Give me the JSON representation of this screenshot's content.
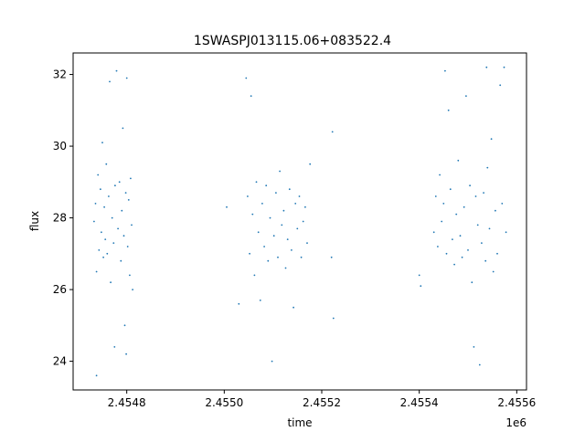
{
  "chart_data": {
    "type": "scatter",
    "title": "1SWASPJ013115.06+083522.4",
    "xlabel": "time",
    "ylabel": "flux",
    "x_offset_label": "1e6",
    "xlim": [
      2454690,
      2455620
    ],
    "ylim": [
      23.2,
      32.6
    ],
    "grid": false,
    "legend": "none",
    "point_color": "#1f77b4",
    "x_ticks": [
      {
        "value": 2454800,
        "label": "2.4548"
      },
      {
        "value": 2455000,
        "label": "2.4550"
      },
      {
        "value": 2455200,
        "label": "2.4552"
      },
      {
        "value": 2455400,
        "label": "2.4554"
      },
      {
        "value": 2455600,
        "label": "2.4556"
      }
    ],
    "y_ticks": [
      {
        "value": 24,
        "label": "24"
      },
      {
        "value": 26,
        "label": "26"
      },
      {
        "value": 28,
        "label": "28"
      },
      {
        "value": 30,
        "label": "30"
      },
      {
        "value": 32,
        "label": "32"
      }
    ],
    "series": [
      {
        "points": [
          [
            2454733,
            27.9
          ],
          [
            2454736,
            28.4
          ],
          [
            2454738,
            26.5
          ],
          [
            2454741,
            29.2
          ],
          [
            2454743,
            27.1
          ],
          [
            2454746,
            28.8
          ],
          [
            2454748,
            27.6
          ],
          [
            2454750,
            30.1
          ],
          [
            2454752,
            26.9
          ],
          [
            2454754,
            28.3
          ],
          [
            2454756,
            27.4
          ],
          [
            2454758,
            29.5
          ],
          [
            2454760,
            27.0
          ],
          [
            2454763,
            28.6
          ],
          [
            2454765,
            31.8
          ],
          [
            2454767,
            26.2
          ],
          [
            2454770,
            28.0
          ],
          [
            2454773,
            27.3
          ],
          [
            2454776,
            28.9
          ],
          [
            2454779,
            32.1
          ],
          [
            2454782,
            27.7
          ],
          [
            2454785,
            29.0
          ],
          [
            2454788,
            26.8
          ],
          [
            2454790,
            28.2
          ],
          [
            2454792,
            30.5
          ],
          [
            2454794,
            27.5
          ],
          [
            2454796,
            25.0
          ],
          [
            2454798,
            28.7
          ],
          [
            2454800,
            31.9
          ],
          [
            2454802,
            27.2
          ],
          [
            2454804,
            28.5
          ],
          [
            2454806,
            26.4
          ],
          [
            2454808,
            29.1
          ],
          [
            2454810,
            27.8
          ],
          [
            2454812,
            26.0
          ],
          [
            2454738,
            23.6
          ],
          [
            2454775,
            24.4
          ],
          [
            2454799,
            24.2
          ],
          [
            2455005,
            28.3
          ],
          [
            2455030,
            25.6
          ],
          [
            2455045,
            31.9
          ],
          [
            2455048,
            28.6
          ],
          [
            2455052,
            27.0
          ],
          [
            2455055,
            31.4
          ],
          [
            2455058,
            28.1
          ],
          [
            2455062,
            26.4
          ],
          [
            2455066,
            29.0
          ],
          [
            2455070,
            27.6
          ],
          [
            2455074,
            25.7
          ],
          [
            2455078,
            28.4
          ],
          [
            2455082,
            27.2
          ],
          [
            2455086,
            28.9
          ],
          [
            2455090,
            26.8
          ],
          [
            2455094,
            28.0
          ],
          [
            2455098,
            24.0
          ],
          [
            2455102,
            27.5
          ],
          [
            2455106,
            28.7
          ],
          [
            2455110,
            26.9
          ],
          [
            2455114,
            29.3
          ],
          [
            2455118,
            27.8
          ],
          [
            2455122,
            28.2
          ],
          [
            2455126,
            26.6
          ],
          [
            2455130,
            27.4
          ],
          [
            2455134,
            28.8
          ],
          [
            2455138,
            27.1
          ],
          [
            2455142,
            25.5
          ],
          [
            2455146,
            28.4
          ],
          [
            2455150,
            27.7
          ],
          [
            2455154,
            28.6
          ],
          [
            2455158,
            26.9
          ],
          [
            2455162,
            27.9
          ],
          [
            2455166,
            28.3
          ],
          [
            2455170,
            27.3
          ],
          [
            2455176,
            29.5
          ],
          [
            2455222,
            30.4
          ],
          [
            2455224,
            25.2
          ],
          [
            2455220,
            26.9
          ],
          [
            2455400,
            26.4
          ],
          [
            2455403,
            26.1
          ],
          [
            2455430,
            27.6
          ],
          [
            2455434,
            28.6
          ],
          [
            2455438,
            27.2
          ],
          [
            2455442,
            29.2
          ],
          [
            2455446,
            27.9
          ],
          [
            2455450,
            28.4
          ],
          [
            2455453,
            32.1
          ],
          [
            2455456,
            27.0
          ],
          [
            2455460,
            31.0
          ],
          [
            2455464,
            28.8
          ],
          [
            2455468,
            27.4
          ],
          [
            2455472,
            26.7
          ],
          [
            2455476,
            28.1
          ],
          [
            2455480,
            29.6
          ],
          [
            2455484,
            27.5
          ],
          [
            2455488,
            26.9
          ],
          [
            2455492,
            28.3
          ],
          [
            2455496,
            31.4
          ],
          [
            2455500,
            27.1
          ],
          [
            2455504,
            28.9
          ],
          [
            2455508,
            26.2
          ],
          [
            2455512,
            24.4
          ],
          [
            2455516,
            28.6
          ],
          [
            2455520,
            27.8
          ],
          [
            2455524,
            23.9
          ],
          [
            2455528,
            27.3
          ],
          [
            2455532,
            28.7
          ],
          [
            2455536,
            26.8
          ],
          [
            2455540,
            29.4
          ],
          [
            2455544,
            27.7
          ],
          [
            2455548,
            30.2
          ],
          [
            2455552,
            26.5
          ],
          [
            2455556,
            28.2
          ],
          [
            2455560,
            27.0
          ],
          [
            2455566,
            31.7
          ],
          [
            2455570,
            28.4
          ],
          [
            2455574,
            32.2
          ],
          [
            2455578,
            27.6
          ],
          [
            2455538,
            32.2
          ]
        ]
      }
    ]
  }
}
